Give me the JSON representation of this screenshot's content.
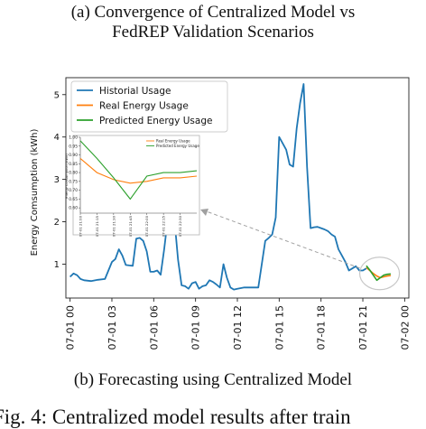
{
  "captions": {
    "top_line1": "(a) Convergence of Centralized Model vs",
    "top_line2": "FedREP Validation Scenarios",
    "bottom": "(b) Forecasting using Centralized Model",
    "figure": "Fig. 4: Centralized model results after train"
  },
  "chart_data": {
    "type": "line",
    "ylabel": "Energy Comsumption (kWh)",
    "ylim": [
      0.2,
      5.4
    ],
    "yticks": [
      1,
      2,
      3,
      4,
      5
    ],
    "xlim": [
      -0.3,
      24.3
    ],
    "xticks": [
      0,
      3,
      6,
      9,
      12,
      15,
      18,
      21,
      24
    ],
    "xticklabels": [
      "07-01 00",
      "07-01 03",
      "07-01 06",
      "07-01 09",
      "07-01 12",
      "07-01 15",
      "07-01 18",
      "07-01 21",
      "07-02 00"
    ],
    "legend": {
      "position": "top-left",
      "entries": [
        "Historial Usage",
        "Real Energy Usage",
        "Predicted Energy Usage"
      ]
    },
    "colors": {
      "historical": "#1f77b4",
      "real": "#ff7f0e",
      "predicted": "#2ca02c",
      "arrow": "#a0a0a0"
    },
    "series": [
      {
        "name": "Historial Usage",
        "x": [
          0,
          0.25,
          0.5,
          0.75,
          1,
          1.5,
          2,
          2.5,
          3,
          3.25,
          3.5,
          3.75,
          4,
          4.25,
          4.5,
          4.75,
          5,
          5.25,
          5.5,
          5.75,
          6,
          6.25,
          6.5,
          6.75,
          7,
          7.25,
          7.5,
          7.75,
          8,
          8.25,
          8.5,
          8.75,
          9,
          9.25,
          9.5,
          9.75,
          10,
          10.25,
          10.5,
          10.75,
          11,
          11.25,
          11.5,
          11.75,
          12,
          12.5,
          13,
          13.5,
          14,
          14.25,
          14.5,
          14.75,
          15,
          15.25,
          15.5,
          15.75,
          16,
          16.25,
          16.5,
          16.75,
          17,
          17.25,
          17.5,
          17.75,
          18,
          18.25,
          18.5,
          18.75,
          19,
          19.25,
          19.5,
          19.75,
          20,
          20.25,
          20.5,
          20.75,
          21,
          21.25
        ],
        "y": [
          0.7,
          0.78,
          0.74,
          0.65,
          0.62,
          0.6,
          0.63,
          0.65,
          1.05,
          1.12,
          1.35,
          1.2,
          0.98,
          0.97,
          0.96,
          1.6,
          1.62,
          1.55,
          1.3,
          0.82,
          0.82,
          0.85,
          0.75,
          1.35,
          2.05,
          2.05,
          2.0,
          1.1,
          0.5,
          0.48,
          0.42,
          0.55,
          0.58,
          0.42,
          0.48,
          0.5,
          0.62,
          0.58,
          0.52,
          0.45,
          1.0,
          0.68,
          0.45,
          0.4,
          0.42,
          0.45,
          0.45,
          0.45,
          1.55,
          1.62,
          1.7,
          2.1,
          4.0,
          3.85,
          3.7,
          3.35,
          3.3,
          4.2,
          4.8,
          5.25,
          3.3,
          1.85,
          1.87,
          1.88,
          1.85,
          1.82,
          1.78,
          1.7,
          1.65,
          1.35,
          1.2,
          1.05,
          0.85,
          0.9,
          0.95,
          0.85,
          0.85,
          0.9
        ]
      },
      {
        "name": "Real Energy Usage",
        "x": [
          21.25,
          21.5,
          21.75,
          22,
          22.25,
          22.5,
          22.75,
          23
        ],
        "y": [
          0.92,
          0.85,
          0.78,
          0.72,
          0.68,
          0.7,
          0.72,
          0.73
        ]
      },
      {
        "name": "Predicted Energy Usage",
        "x": [
          21.25,
          21.5,
          21.75,
          22,
          22.25,
          22.5,
          22.75,
          23
        ],
        "y": [
          0.96,
          0.86,
          0.74,
          0.62,
          0.68,
          0.74,
          0.76,
          0.77
        ]
      }
    ],
    "inset": {
      "ylim": [
        0.57,
        1.0
      ],
      "yticks": [
        0.6,
        0.65,
        0.7,
        0.75,
        0.8,
        0.85,
        0.9,
        0.95,
        1.0
      ],
      "yticklabels": [
        "0.60",
        "0.65",
        "0.70",
        "0.75",
        "0.80",
        "0.85",
        "0.90",
        "0.95",
        "1.00"
      ],
      "xticks": [
        0,
        1,
        2,
        3,
        4,
        5,
        6
      ],
      "xticklabels": [
        "07-01 21:00",
        "07-01 21:15",
        "07-01 21:30",
        "07-01 21:45",
        "07-01 22:00",
        "07-01 22:15",
        "07-01 22:30"
      ],
      "ylabel": "Energy Consumption (kWh)",
      "legend": {
        "position": "top-right",
        "entries": [
          "Real Energy Usage",
          "Predicted Energy Usage"
        ]
      },
      "real": {
        "x": [
          0,
          1,
          2,
          3,
          4,
          5,
          6,
          7
        ],
        "y": [
          0.88,
          0.8,
          0.76,
          0.74,
          0.75,
          0.77,
          0.77,
          0.78
        ]
      },
      "predicted": {
        "x": [
          0,
          1,
          2,
          3,
          4,
          5,
          6,
          7
        ],
        "y": [
          0.98,
          0.88,
          0.77,
          0.65,
          0.78,
          0.8,
          0.8,
          0.81
        ]
      }
    }
  }
}
